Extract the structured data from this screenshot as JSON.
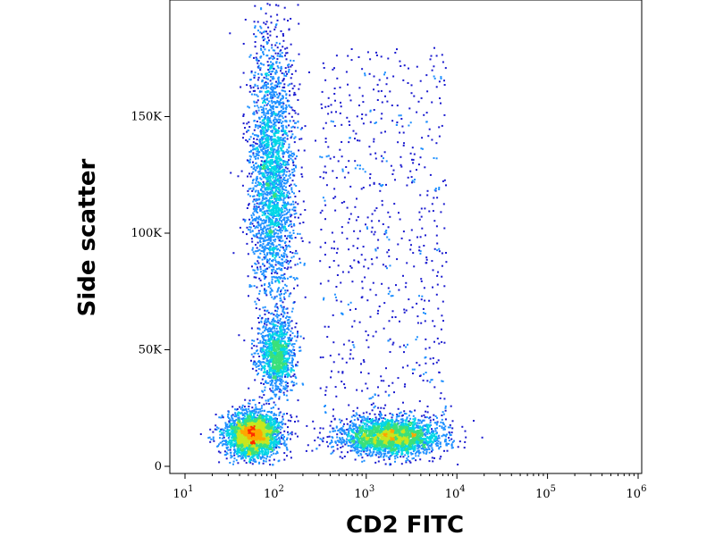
{
  "chart_data": {
    "type": "scatter",
    "title": "",
    "xlabel": "CD2 FITC",
    "ylabel": "Side scatter",
    "x_scale": "log",
    "xlim": [
      10,
      1000000
    ],
    "ylim": [
      0,
      200000
    ],
    "x_ticks": [
      {
        "value": 10,
        "base": "10",
        "exp": "1"
      },
      {
        "value": 100,
        "base": "10",
        "exp": "2"
      },
      {
        "value": 1000,
        "base": "10",
        "exp": "3"
      },
      {
        "value": 10000,
        "base": "10",
        "exp": "4"
      },
      {
        "value": 100000,
        "base": "10",
        "exp": "5"
      },
      {
        "value": 1000000,
        "base": "10",
        "exp": "6"
      }
    ],
    "y_ticks": [
      {
        "value": 0,
        "label": "0"
      },
      {
        "value": 50000,
        "label": "50K"
      },
      {
        "value": 100000,
        "label": "100K"
      },
      {
        "value": 150000,
        "label": "150K"
      }
    ],
    "grid": false,
    "color_scale": [
      "#1a1acf",
      "#1e90ff",
      "#00d7e6",
      "#3be07a",
      "#c8e61e",
      "#ffa500",
      "#ff2a00"
    ],
    "populations": [
      {
        "x_center": 90,
        "x_spread_decades": 0.13,
        "y_center": 125000,
        "y_spread": 30000,
        "density": "high"
      },
      {
        "x_center": 100,
        "x_spread_decades": 0.1,
        "y_center": 48000,
        "y_spread": 8000,
        "density": "medium"
      },
      {
        "x_center": 55,
        "x_spread_decades": 0.15,
        "y_center": 14000,
        "y_spread": 5000,
        "density": "high"
      },
      {
        "x_center": 1800,
        "x_spread_decades": 0.28,
        "y_center": 13000,
        "y_spread": 4000,
        "density": "high"
      },
      {
        "x_center": 1500,
        "x_spread_decades": 0.45,
        "y_center": 90000,
        "y_spread": 45000,
        "density": "low"
      }
    ]
  }
}
